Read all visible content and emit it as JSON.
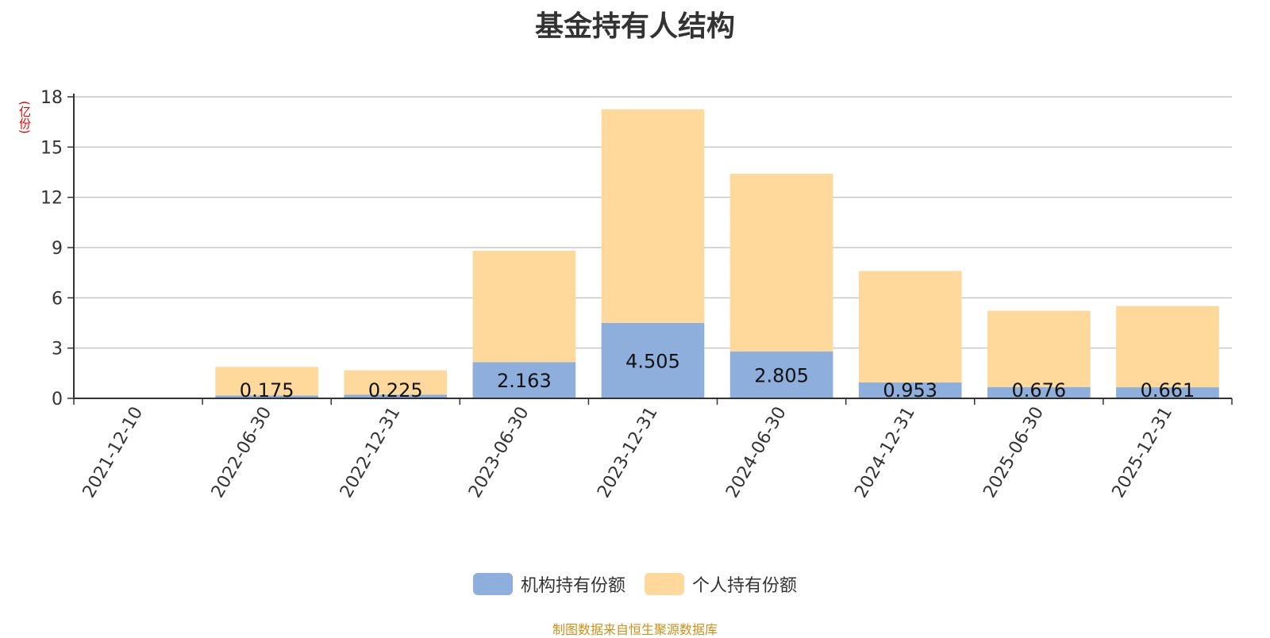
{
  "colors": {
    "institutional": "#8eaedc",
    "individual": "#fed99b",
    "grid": "#c8c8c8",
    "axis": "#333333",
    "unit": "#e60000",
    "source": "#c8911a"
  },
  "chart_data": {
    "type": "bar",
    "stacked": true,
    "title": "基金持有人结构",
    "unit_label": "(亿份)",
    "categories": [
      "2021-12-10",
      "2022-06-30",
      "2022-12-31",
      "2023-06-30",
      "2023-12-31",
      "2024-06-30",
      "2024-12-31",
      "2025-06-30",
      "2025-12-31"
    ],
    "series": [
      {
        "name": "机构持有份额",
        "values": [
          0,
          0.175,
          0.225,
          2.163,
          4.505,
          2.805,
          0.953,
          0.676,
          0.661
        ],
        "labels": [
          "",
          "0.175",
          "0.225",
          "2.163",
          "4.505",
          "2.805",
          "0.953",
          "0.676",
          "0.661"
        ]
      },
      {
        "name": "个人持有份额",
        "values": [
          0,
          1.7,
          1.45,
          6.65,
          12.75,
          10.6,
          6.65,
          4.55,
          4.85
        ]
      }
    ],
    "ylim": [
      0,
      18
    ],
    "yticks": [
      0,
      3,
      6,
      9,
      12,
      15,
      18
    ],
    "grid": true,
    "legend_position": "bottom-center"
  },
  "source_note": "制图数据来自恒生聚源数据库"
}
